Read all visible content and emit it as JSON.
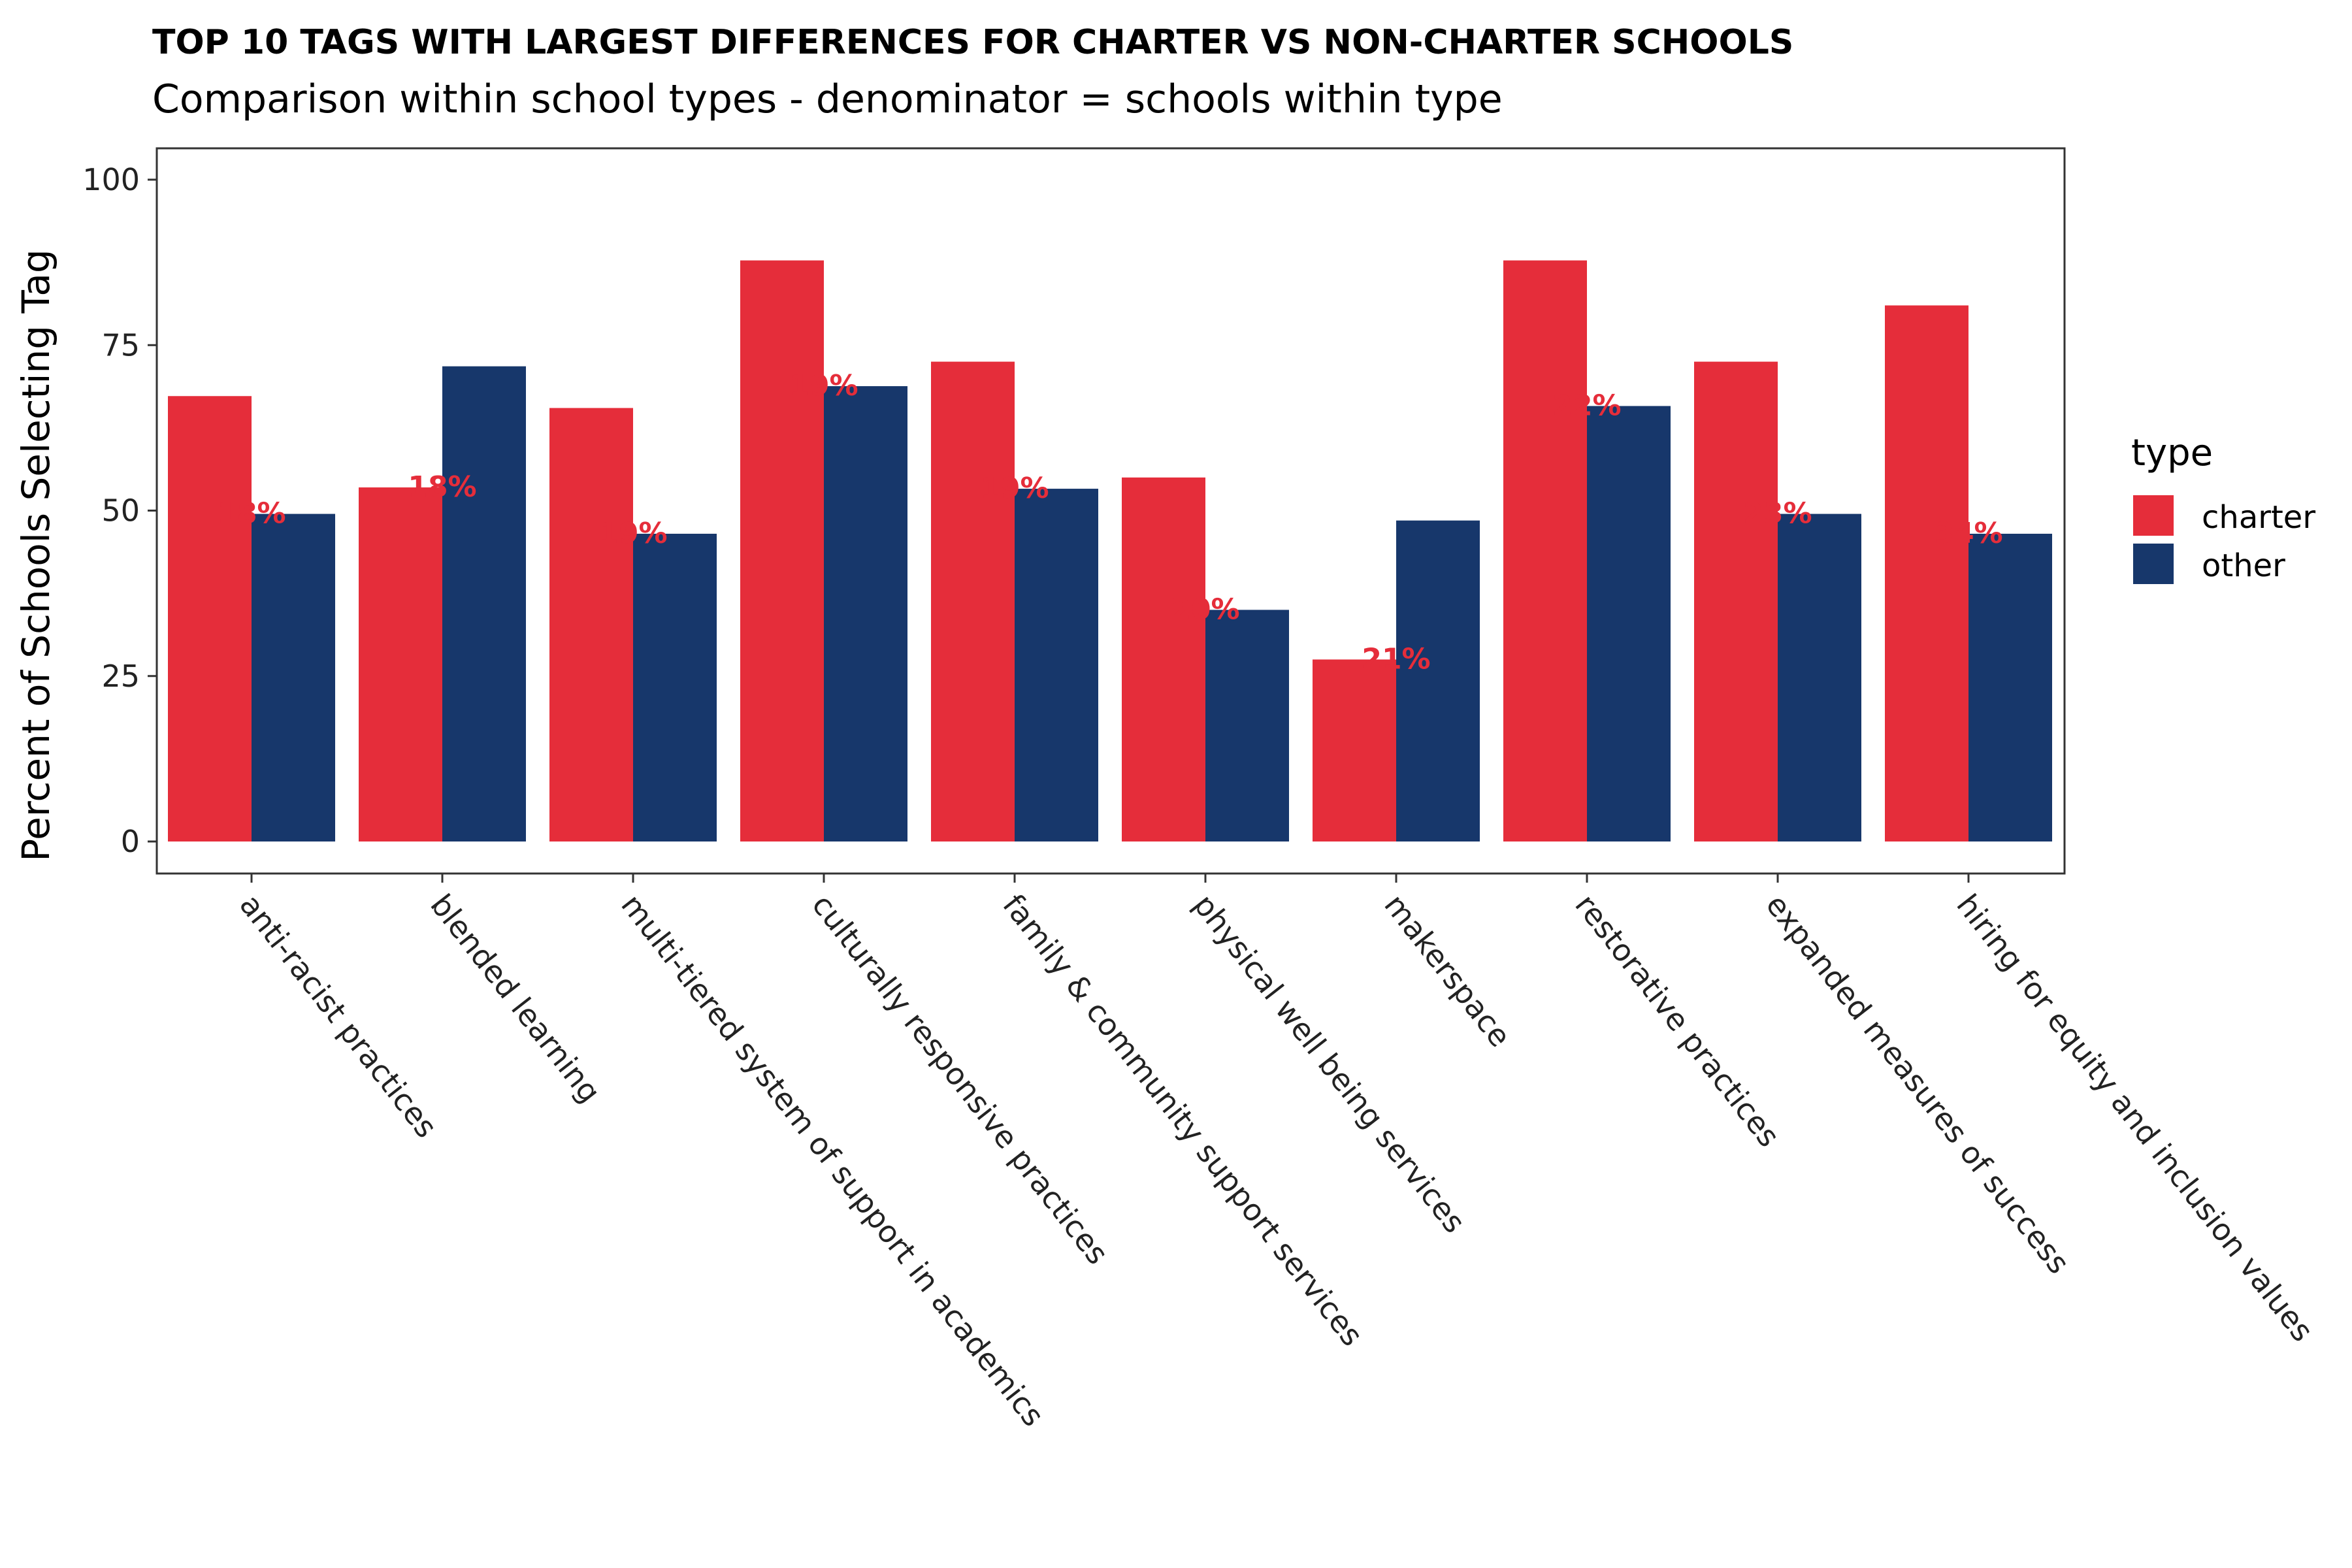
{
  "chart_data": {
    "type": "bar",
    "title": "TOP 10 TAGS WITH LARGEST DIFFERENCES FOR CHARTER VS NON-CHARTER SCHOOLS",
    "subtitle": "Comparison within school types - denominator = schools within type",
    "ylabel": "Percent of Schools Selecting Tag",
    "xlabel": "",
    "ylim": [
      0,
      100
    ],
    "yticks": [
      0,
      25,
      50,
      75,
      100
    ],
    "grid": false,
    "legend": {
      "title": "type",
      "placement": "right"
    },
    "categories": [
      "anti-racist practices",
      "blended learning",
      "multi-tiered system of support in academics",
      "culturally responsive practices",
      "family & community support services",
      "physical well being services",
      "makerspace",
      "restorative practices",
      "expanded measures of success",
      "hiring for equity and inclusion values"
    ],
    "series": [
      {
        "name": "charter",
        "color": "#e52d3a",
        "values": [
          67.3,
          53.5,
          65.5,
          87.8,
          72.5,
          55.0,
          27.5,
          87.8,
          72.5,
          81.0
        ]
      },
      {
        "name": "other",
        "color": "#17376b",
        "values": [
          49.5,
          71.8,
          46.5,
          68.8,
          53.3,
          35.0,
          48.5,
          65.8,
          49.5,
          46.5
        ]
      }
    ],
    "annotations": [
      "18%",
      "18%",
      "19%",
      "19%",
      "19%",
      "20%",
      "21%",
      "22%",
      "23%",
      "34%"
    ],
    "annotation_color": "#e52d3a"
  }
}
